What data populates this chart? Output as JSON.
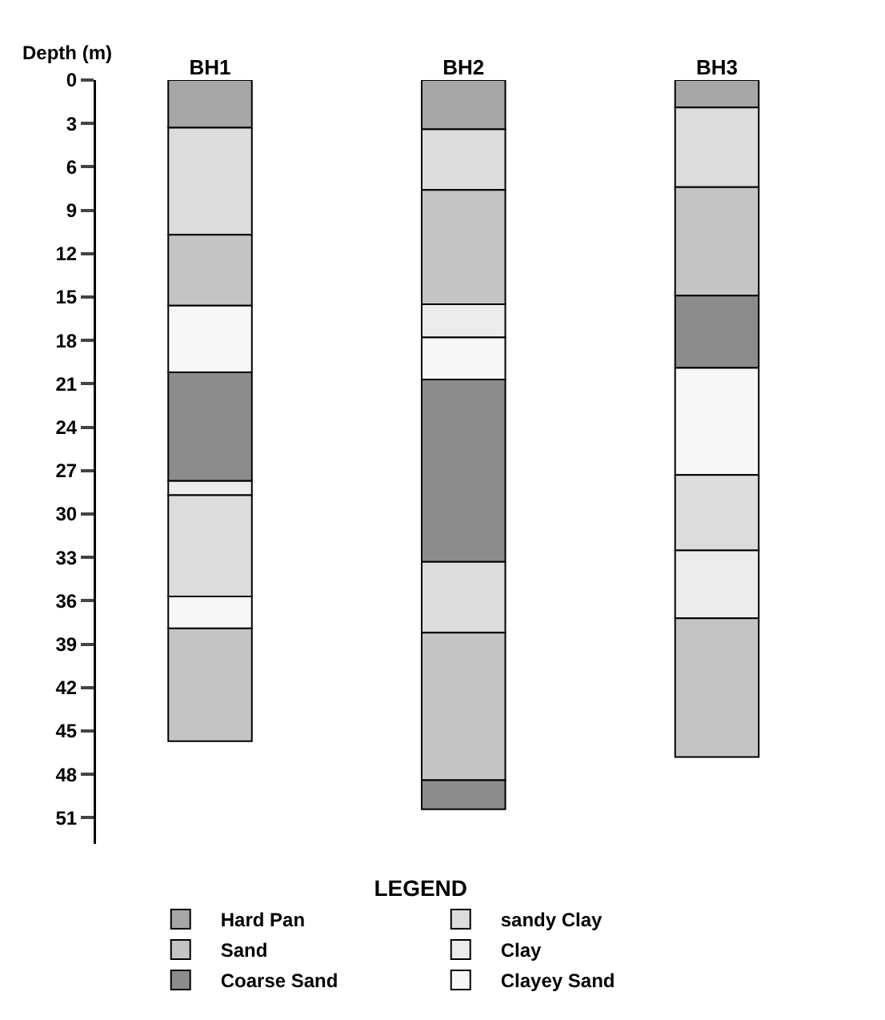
{
  "chart_data": {
    "type": "bar",
    "categories": [
      "BH1",
      "BH2",
      "BH3"
    ],
    "ylabel": "Depth (m)",
    "legend_title": "LEGEND",
    "legend": "bottom",
    "grid": false,
    "ylim": [
      52.8,
      0
    ],
    "yticks": [
      0,
      3,
      6,
      9,
      12,
      15,
      18,
      21,
      24,
      27,
      30,
      33,
      36,
      39,
      42,
      45,
      48,
      51
    ],
    "series": [
      {
        "name": "Hard Pan",
        "color": "#a6a6a6",
        "values": [
          3.3,
          3.4,
          1.9
        ],
        "base": [
          0,
          0,
          0
        ]
      },
      {
        "name": "sandy Clay",
        "color": "#dcdcdc",
        "values": [
          7.4,
          4.2,
          5.5
        ],
        "base": [
          3.3,
          3.4,
          1.9
        ]
      },
      {
        "name": "Sand",
        "color": "#c4c4c4",
        "values": [
          4.9,
          7.9,
          7.5
        ],
        "base": [
          10.7,
          7.6,
          7.4
        ]
      },
      {
        "name": "Clay",
        "color": "#ececec",
        "values": [
          1.0,
          2.3,
          4.7
        ],
        "base": [
          27.7,
          15.5,
          32.5
        ]
      },
      {
        "name": "Coarse Sand",
        "color": "#8c8c8c",
        "values": [
          7.5,
          12.6,
          5.0
        ],
        "base": [
          20.2,
          20.7,
          14.9
        ]
      },
      {
        "name": "Clayey Sand",
        "color": "#f7f7f7",
        "values": [
          4.6,
          2.9,
          7.4
        ],
        "base": [
          15.6,
          17.8,
          19.9
        ]
      },
      {
        "color": "#dcdcdc",
        "values": [
          7.0,
          4.9,
          5.2
        ],
        "base": [
          28.7,
          33.3,
          27.3
        ]
      },
      {
        "color": "#c4c4c4",
        "values": [
          7.8,
          10.2,
          9.6
        ],
        "base": [
          37.9,
          38.2,
          37.2
        ]
      },
      {
        "color": "#8c8c8c",
        "values": [
          null,
          2.0,
          null
        ],
        "base": [
          null,
          48.4,
          null
        ]
      },
      {
        "color": "#f7f7f7",
        "values": [
          2.2,
          null,
          null
        ],
        "base": [
          35.7,
          null,
          null
        ]
      }
    ]
  }
}
